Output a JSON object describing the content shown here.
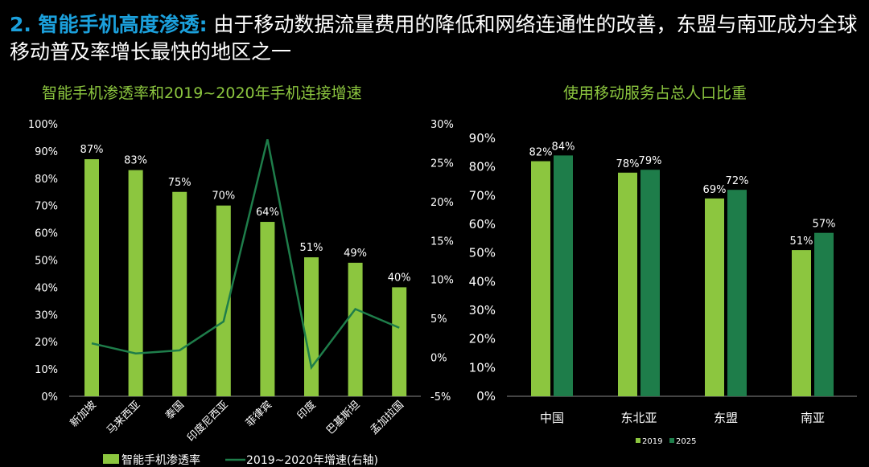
{
  "header": {
    "highlight": "2. 智能手机高度渗透:",
    "text": " 由于移动数据流量费用的降低和网络连通性的改善，东盟与南亚成为全球移动普及率增长最快的地区之一"
  },
  "colors": {
    "bar_light": "#8cc63f",
    "bar_dark": "#1e7d4a",
    "line": "#1e7d4a",
    "accent": "#1ba0dc"
  },
  "chart_data": [
    {
      "type": "bar",
      "title": "智能手机渗透率和2019~2020年手机连接增速",
      "categories": [
        "新加坡",
        "马来西亚",
        "泰国",
        "印度尼西亚",
        "菲律宾",
        "印度",
        "巴基斯坦",
        "孟加拉国"
      ],
      "series": [
        {
          "name": "智能手机渗透率",
          "type": "bar",
          "axis": "left",
          "values": [
            87,
            83,
            75,
            70,
            64,
            51,
            49,
            40
          ],
          "labels": [
            "87%",
            "83%",
            "75%",
            "70%",
            "64%",
            "51%",
            "49%",
            "40%"
          ]
        },
        {
          "name": "2019~2020年增速(右轴)",
          "type": "line",
          "axis": "right",
          "values": [
            1.8,
            0.5,
            0.9,
            4.6,
            28,
            -1.3,
            6.2,
            3.8
          ]
        }
      ],
      "ylim": [
        0,
        100
      ],
      "yticks": [
        "0%",
        "10%",
        "20%",
        "30%",
        "40%",
        "50%",
        "60%",
        "70%",
        "80%",
        "90%",
        "100%"
      ],
      "y2lim": [
        -5,
        30
      ],
      "y2ticks": [
        "-5%",
        "0%",
        "5%",
        "10%",
        "15%",
        "20%",
        "25%",
        "30%"
      ],
      "legend": "bottom"
    },
    {
      "type": "bar",
      "title": "使用移动服务占总人口比重",
      "categories": [
        "中国",
        "东北亚",
        "东盟",
        "南亚"
      ],
      "series": [
        {
          "name": "2019",
          "values": [
            82,
            78,
            69,
            51
          ],
          "labels": [
            "82%",
            "78%",
            "69%",
            "51%"
          ]
        },
        {
          "name": "2025",
          "values": [
            84,
            79,
            72,
            57
          ],
          "labels": [
            "84%",
            "79%",
            "72%",
            "57%"
          ]
        }
      ],
      "ylim": [
        0,
        90
      ],
      "yticks": [
        "0%",
        "10%",
        "20%",
        "30%",
        "40%",
        "50%",
        "60%",
        "70%",
        "80%",
        "90%"
      ],
      "legend": "bottom"
    }
  ]
}
